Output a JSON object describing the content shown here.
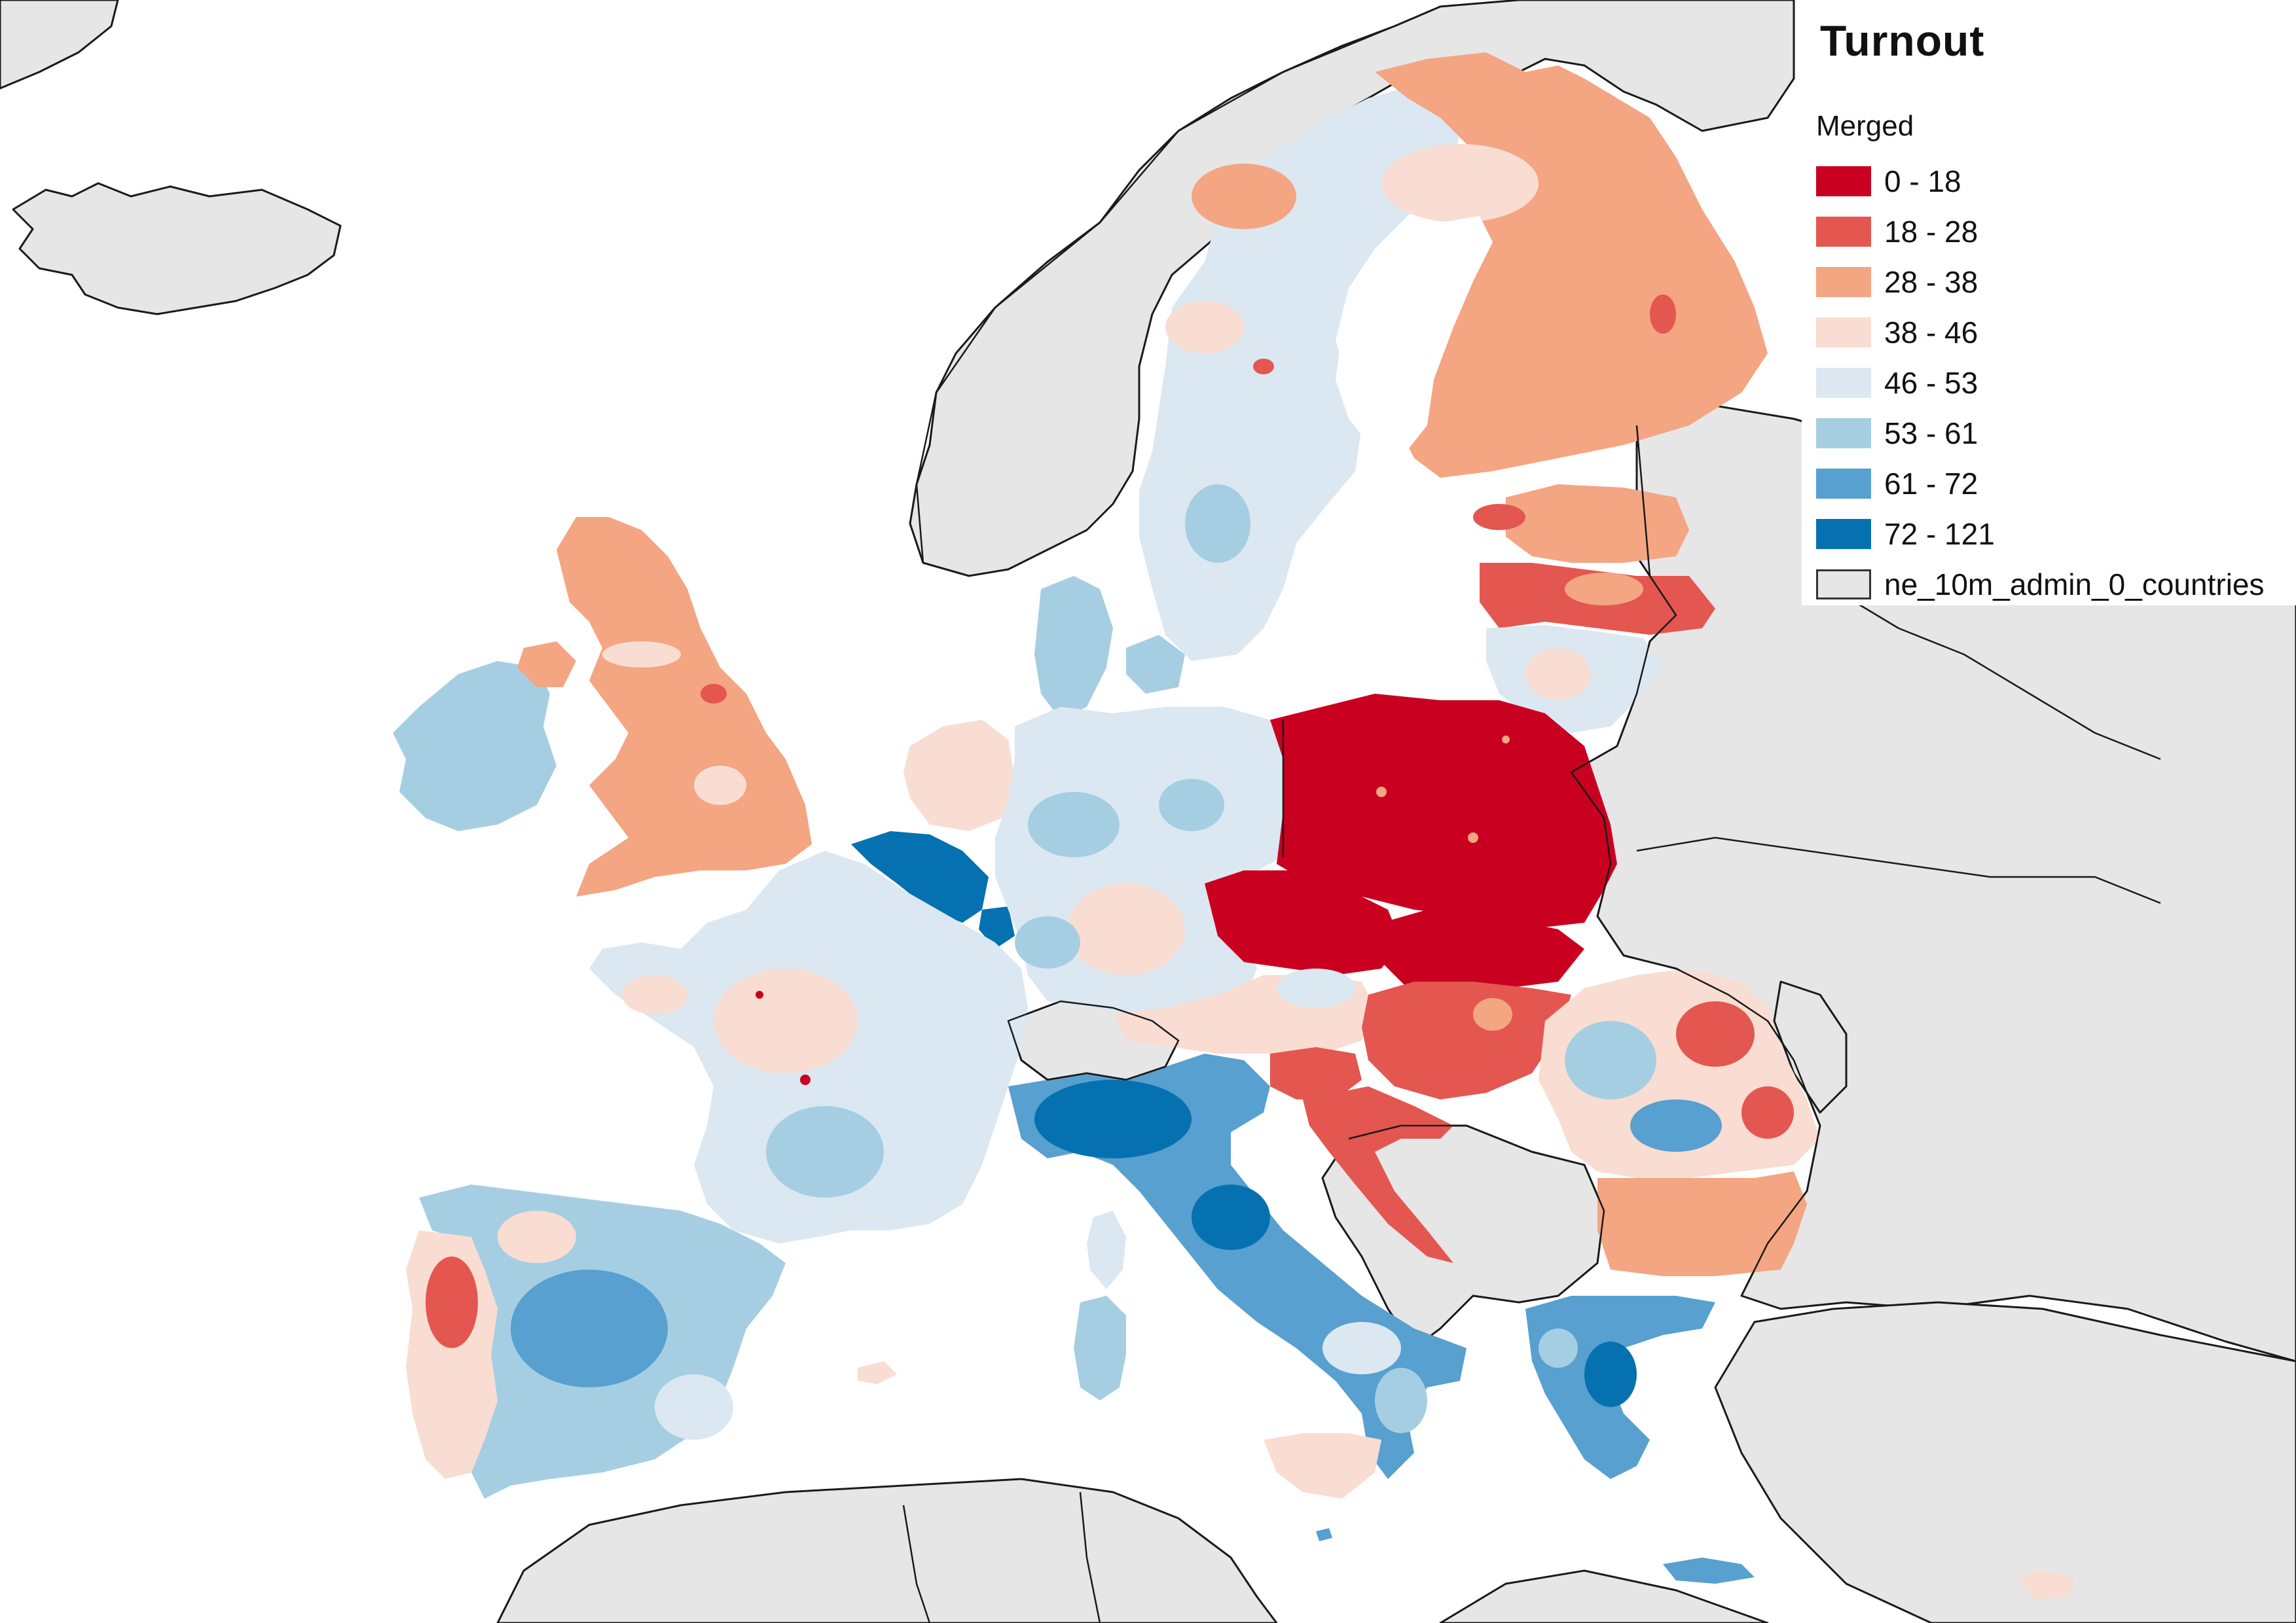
{
  "legend": {
    "title": "Turnout",
    "subtitle": "Merged",
    "classes": [
      {
        "label": "0 - 18",
        "color": "#ca0020"
      },
      {
        "label": "18 - 28",
        "color": "#e35750"
      },
      {
        "label": "28 - 38",
        "color": "#f4a582"
      },
      {
        "label": "38 - 46",
        "color": "#f9ddd2"
      },
      {
        "label": "46 - 53",
        "color": "#dbe8f1"
      },
      {
        "label": "53 - 61",
        "color": "#a6cee3"
      },
      {
        "label": "61 - 72",
        "color": "#57a0d0"
      },
      {
        "label": "72 - 121",
        "color": "#0571b0"
      }
    ],
    "base_layer": {
      "label": "ne_10m_admin_0_countries",
      "color": "#e6e6e6"
    }
  },
  "map_style": {
    "sea_color": "#ffffff",
    "land_color": "#e6e6e6",
    "border_color": "#1a1a1a"
  },
  "regions": [
    {
      "name": "Ireland",
      "class": "53 - 61"
    },
    {
      "name": "United Kingdom",
      "class": "28 - 38"
    },
    {
      "name": "Norway",
      "class": "no data"
    },
    {
      "name": "Sweden",
      "class": "46 - 53"
    },
    {
      "name": "Finland",
      "class": "28 - 38"
    },
    {
      "name": "Estonia",
      "class": "28 - 38"
    },
    {
      "name": "Latvia",
      "class": "18 - 28"
    },
    {
      "name": "Lithuania",
      "class": "46 - 53"
    },
    {
      "name": "Denmark",
      "class": "53 - 61"
    },
    {
      "name": "Netherlands",
      "class": "38 - 46"
    },
    {
      "name": "Belgium",
      "class": "72 - 121"
    },
    {
      "name": "Luxembourg",
      "class": "72 - 121"
    },
    {
      "name": "Germany",
      "class": "46 - 53"
    },
    {
      "name": "Poland",
      "class": "0 - 18"
    },
    {
      "name": "Czechia",
      "class": "0 - 18"
    },
    {
      "name": "Slovakia",
      "class": "0 - 18"
    },
    {
      "name": "Austria",
      "class": "38 - 46"
    },
    {
      "name": "Hungary",
      "class": "18 - 28"
    },
    {
      "name": "Slovenia",
      "class": "18 - 28"
    },
    {
      "name": "Croatia",
      "class": "18 - 28"
    },
    {
      "name": "Romania",
      "class": "38 - 46"
    },
    {
      "name": "Bulgaria",
      "class": "28 - 38"
    },
    {
      "name": "France",
      "class": "46 - 53"
    },
    {
      "name": "Spain",
      "class": "53 - 61"
    },
    {
      "name": "Portugal",
      "class": "38 - 46"
    },
    {
      "name": "Italy",
      "class": "61 - 72"
    },
    {
      "name": "Greece",
      "class": "61 - 72"
    },
    {
      "name": "Cyprus",
      "class": "38 - 46"
    },
    {
      "name": "Malta",
      "class": "61 - 72"
    }
  ]
}
